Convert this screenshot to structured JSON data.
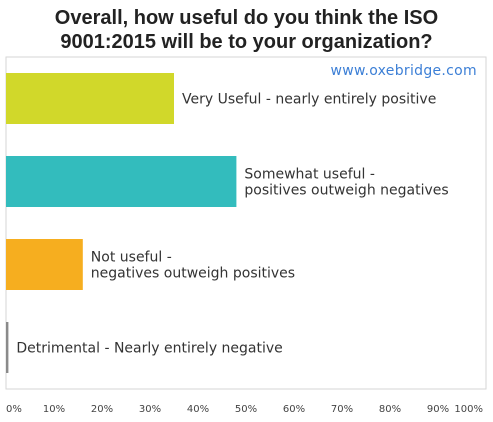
{
  "chart_data": {
    "type": "bar",
    "orientation": "horizontal",
    "title": "Overall, how useful do you think the ISO 9001:2015 will be to your organization?",
    "title_lines": [
      "Overall, how useful do you think the ISO",
      "9001:2015 will be to your organization?"
    ],
    "watermark": "www.oxebridge.com",
    "categories": [
      "Very Useful - nearly entirely positive",
      "Somewhat useful - positives outweigh negatives",
      "Not useful - negatives outweigh positives",
      "Detrimental - Nearly entirely negative"
    ],
    "category_label_lines": [
      [
        "Very Useful - nearly entirely positive"
      ],
      [
        "Somewhat useful -",
        "positives outweigh negatives"
      ],
      [
        "Not useful -",
        "negatives outweigh positives"
      ],
      [
        "Detrimental - Nearly entirely negative"
      ]
    ],
    "values": [
      35,
      48,
      16,
      0.5
    ],
    "colors": [
      "#d1d82a",
      "#33bcbd",
      "#f6ae1f",
      "#8a8a8a"
    ],
    "xlim": [
      0,
      100
    ],
    "x_ticks": [
      "0%",
      "10%",
      "20%",
      "30%",
      "40%",
      "50%",
      "60%",
      "70%",
      "80%",
      "90%",
      "100%"
    ],
    "grid": false,
    "legend": "none"
  }
}
